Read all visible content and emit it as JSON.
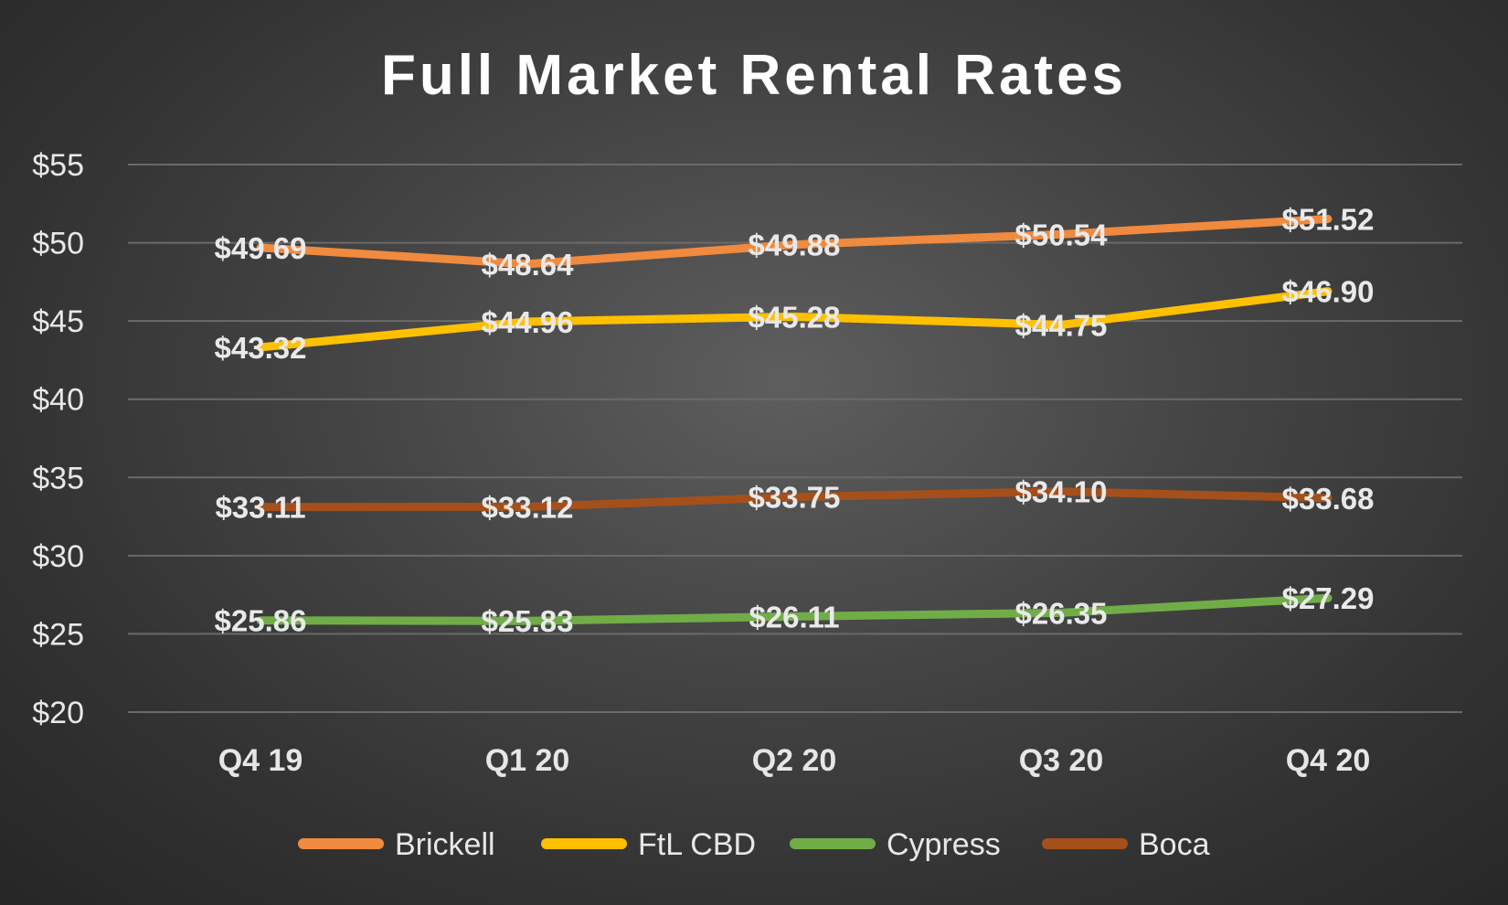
{
  "chart_data": {
    "type": "line",
    "title": "Full Market Rental Rates",
    "categories": [
      "Q4 19",
      "Q1 20",
      "Q2 20",
      "Q3 20",
      "Q4 20"
    ],
    "ylim": [
      20,
      55
    ],
    "yticks": [
      "$20",
      "$25",
      "$30",
      "$35",
      "$40",
      "$45",
      "$50",
      "$55"
    ],
    "ytick_values": [
      20,
      25,
      30,
      35,
      40,
      45,
      50,
      55
    ],
    "grid": true,
    "legend_position": "bottom",
    "series": [
      {
        "name": "Brickell",
        "color": "#F08A3E",
        "values": [
          49.69,
          48.64,
          49.88,
          50.54,
          51.52
        ],
        "labels": [
          "$49.69",
          "$48.64",
          "$49.88",
          "$50.54",
          "$51.52"
        ]
      },
      {
        "name": "FtL CBD",
        "color": "#FFC000",
        "values": [
          43.32,
          44.96,
          45.28,
          44.75,
          46.9
        ],
        "labels": [
          "$43.32",
          "$44.96",
          "$45.28",
          "$44.75",
          "$46.90"
        ]
      },
      {
        "name": "Cypress",
        "color": "#70AD47",
        "values": [
          25.86,
          25.83,
          26.11,
          26.35,
          27.29
        ],
        "labels": [
          "$25.86",
          "$25.83",
          "$26.11",
          "$26.35",
          "$27.29"
        ]
      },
      {
        "name": "Boca",
        "color": "#A5501A",
        "values": [
          33.11,
          33.12,
          33.75,
          34.1,
          33.68
        ],
        "labels": [
          "$33.11",
          "$33.12",
          "$33.75",
          "$34.10",
          "$33.68"
        ]
      }
    ]
  }
}
